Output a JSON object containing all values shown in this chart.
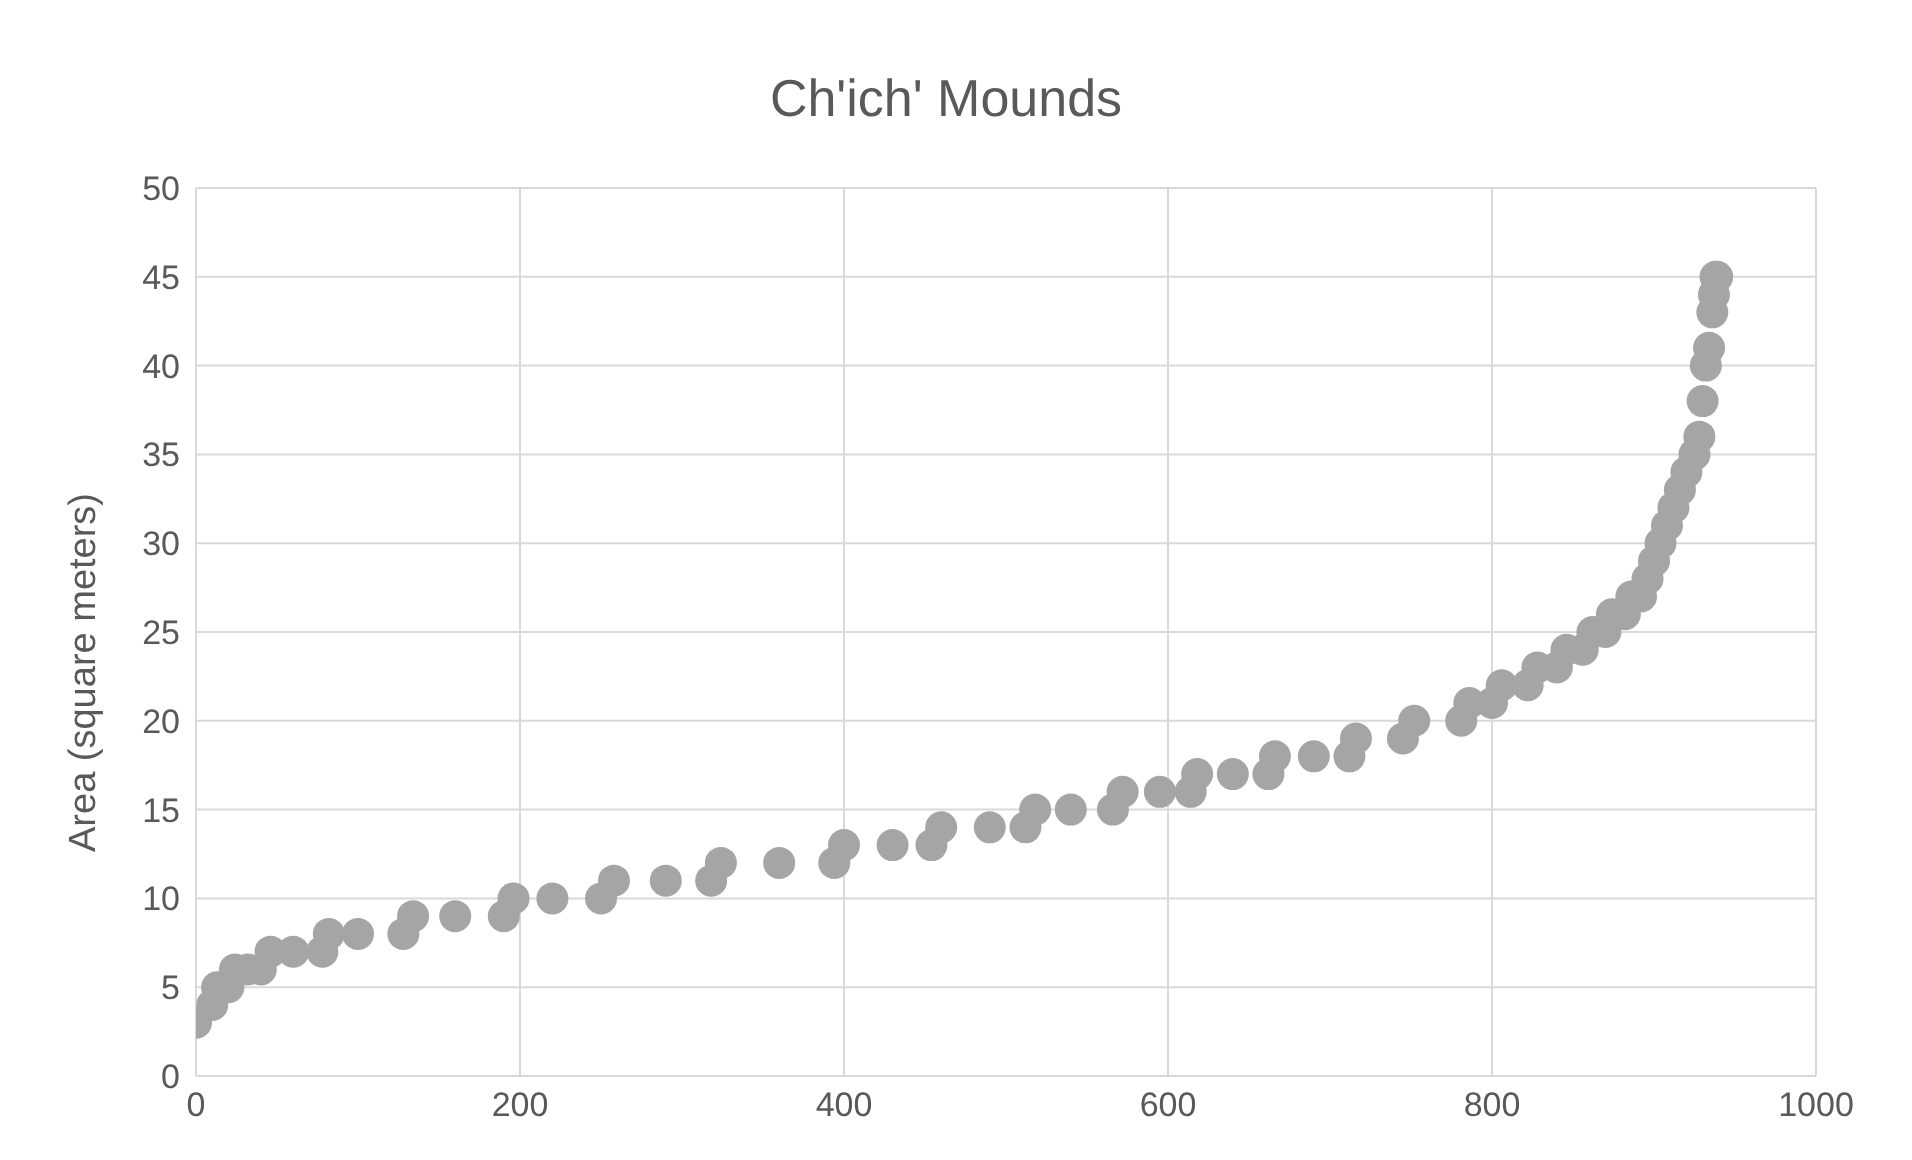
{
  "chart_data": {
    "type": "scatter",
    "title": "Ch'ich' Mounds",
    "ylabel": "Area (square meters)",
    "x": [
      0,
      10,
      13,
      20,
      24,
      32,
      40,
      46,
      60,
      78,
      82,
      100,
      128,
      134,
      160,
      190,
      196,
      220,
      250,
      258,
      290,
      318,
      324,
      360,
      394,
      400,
      430,
      454,
      460,
      490,
      512,
      518,
      540,
      566,
      572,
      595,
      614,
      618,
      640,
      662,
      666,
      690,
      712,
      716,
      745,
      752,
      781,
      786,
      800,
      806,
      822,
      828,
      840,
      846,
      856,
      862,
      870,
      874,
      882,
      886,
      892,
      896,
      900,
      904,
      908,
      912,
      916,
      920,
      925,
      928,
      930,
      932,
      934,
      936,
      937,
      938,
      939
    ],
    "series": [
      {
        "color": "#a5a5a5",
        "values": [
          3,
          4,
          5,
          5,
          6,
          6,
          6,
          7,
          7,
          7,
          8,
          8,
          8,
          9,
          9,
          9,
          10,
          10,
          10,
          11,
          11,
          11,
          12,
          12,
          12,
          13,
          13,
          13,
          14,
          14,
          14,
          15,
          15,
          15,
          16,
          16,
          16,
          17,
          17,
          17,
          18,
          18,
          18,
          19,
          19,
          20,
          20,
          21,
          21,
          22,
          22,
          23,
          23,
          24,
          24,
          25,
          25,
          26,
          26,
          27,
          27,
          28,
          29,
          30,
          31,
          32,
          33,
          34,
          35,
          36,
          38,
          40,
          41,
          43,
          44,
          45,
          45
        ]
      }
    ],
    "xlim": [
      0,
      1000
    ],
    "xticks": [
      0,
      200,
      400,
      600,
      800,
      1000
    ],
    "ylim": [
      0,
      50
    ],
    "yticks": [
      0,
      5,
      10,
      15,
      20,
      25,
      30,
      35,
      40,
      45,
      50
    ],
    "grid": true,
    "marker": "circle"
  }
}
